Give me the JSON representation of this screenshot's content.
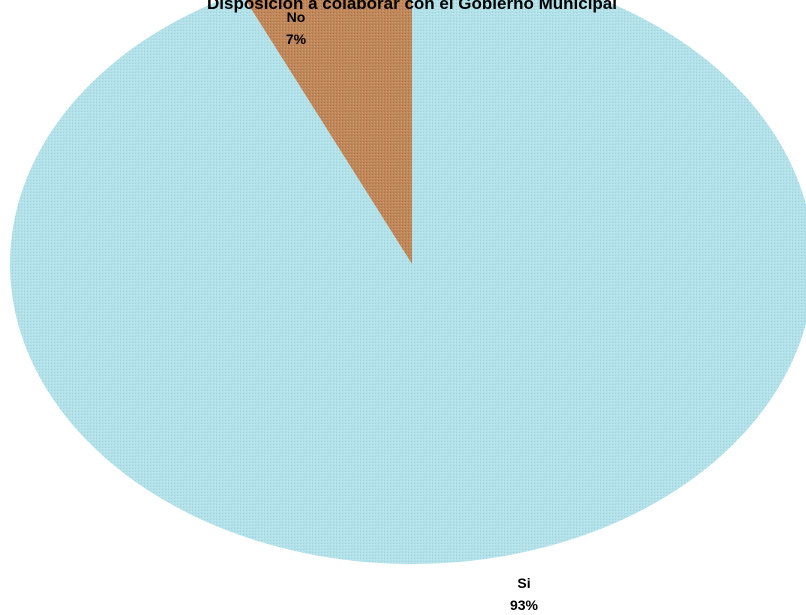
{
  "chart_data": {
    "type": "pie",
    "title": "Disposición a colaborar con el Gobierno Municipal",
    "slices": [
      {
        "label": "Si",
        "value": 93,
        "percent_label": "93%",
        "color": "#b0e0e8"
      },
      {
        "label": "No",
        "value": 7,
        "percent_label": "7%",
        "color": "#c0875a"
      }
    ],
    "legend": "none",
    "data_labels": "category-and-percent"
  }
}
